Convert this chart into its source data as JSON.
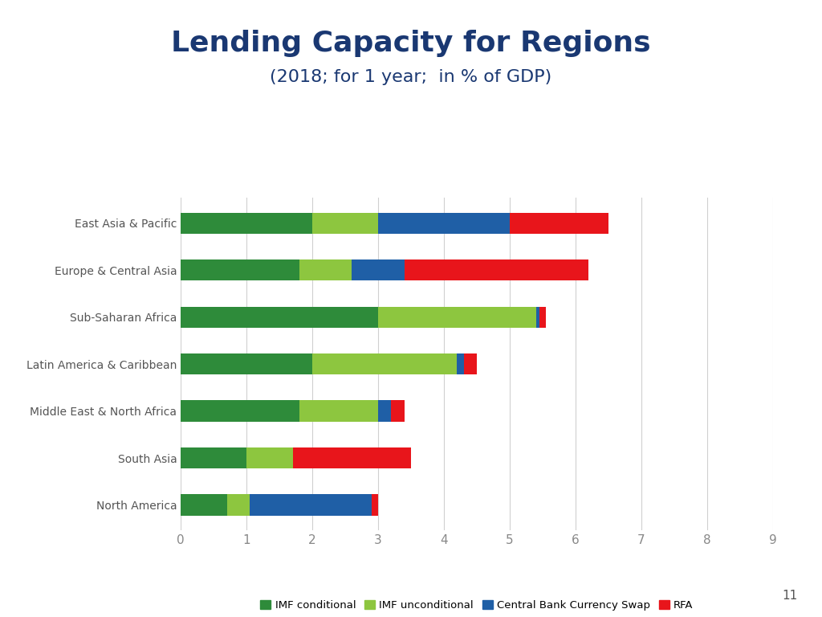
{
  "title": "Lending Capacity for Regions",
  "subtitle": "(2018; for 1 year;  in % of GDP)",
  "categories": [
    "East Asia & Pacific",
    "Europe & Central Asia",
    "Sub-Saharan Africa",
    "Latin America & Caribbean",
    "Middle East & North Africa",
    "South Asia",
    "North America"
  ],
  "series": {
    "IMF conditional": [
      2.0,
      1.8,
      3.0,
      2.0,
      1.8,
      1.0,
      0.7
    ],
    "IMF unconditional": [
      1.0,
      0.8,
      2.4,
      2.2,
      1.2,
      0.7,
      0.35
    ],
    "Central Bank Currency Swap": [
      2.0,
      0.8,
      0.05,
      0.1,
      0.2,
      0.0,
      1.85
    ],
    "RFA": [
      1.5,
      2.8,
      0.1,
      0.2,
      0.2,
      1.8,
      0.1
    ]
  },
  "colors": {
    "IMF conditional": "#2e8b3a",
    "IMF unconditional": "#8dc63f",
    "Central Bank Currency Swap": "#1f5fa6",
    "RFA": "#e8151b"
  },
  "xlim": [
    0,
    9
  ],
  "xticks": [
    0,
    1,
    2,
    3,
    4,
    5,
    6,
    7,
    8,
    9
  ],
  "title_color": "#1a3872",
  "title_fontsize": 26,
  "subtitle_fontsize": 16,
  "background_color": "#ffffff",
  "bar_height": 0.45,
  "grid_color": "#d0d0d0",
  "label_fontsize": 10,
  "tick_fontsize": 11
}
